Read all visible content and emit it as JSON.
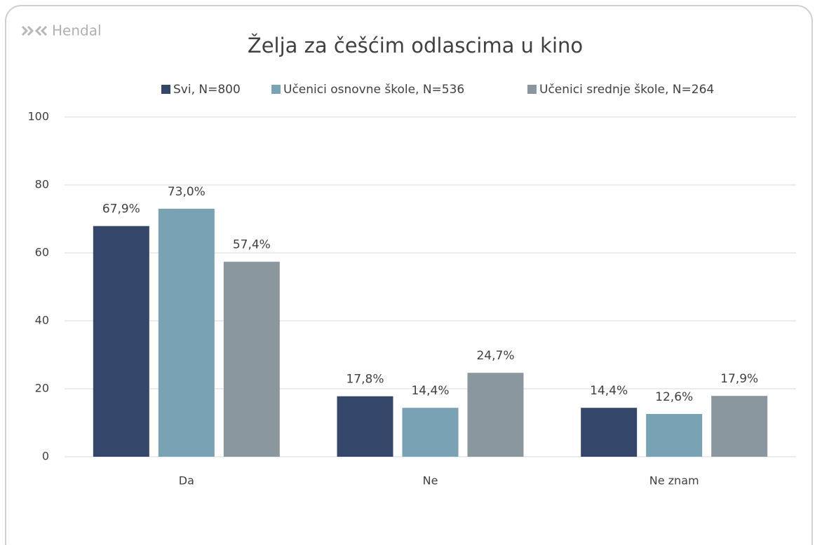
{
  "brand": "Hendal",
  "chart_data": {
    "type": "bar",
    "title": "Želja za češćim odlascima u kino",
    "categories": [
      "Da",
      "Ne",
      "Ne znam"
    ],
    "series": [
      {
        "name": "Svi, N=800",
        "color": "#34476a",
        "values": [
          67.9,
          17.8,
          14.4
        ],
        "value_labels": [
          "67,9%",
          "17,8%",
          "14,4%"
        ]
      },
      {
        "name": "Učenici osnovne škole, N=536",
        "color": "#7aa2b5",
        "values": [
          73.0,
          14.4,
          12.6
        ],
        "value_labels": [
          "73,0%",
          "14,4%",
          "12,6%"
        ]
      },
      {
        "name": "Učenici srednje škole, N=264",
        "color": "#8b979e",
        "values": [
          57.4,
          24.7,
          17.9
        ],
        "value_labels": [
          "57,4%",
          "24,7%",
          "17,9%"
        ]
      }
    ],
    "ylim": [
      0,
      100
    ],
    "yticks": [
      0,
      20,
      40,
      60,
      80,
      100
    ],
    "grid": true,
    "legend": "top"
  }
}
